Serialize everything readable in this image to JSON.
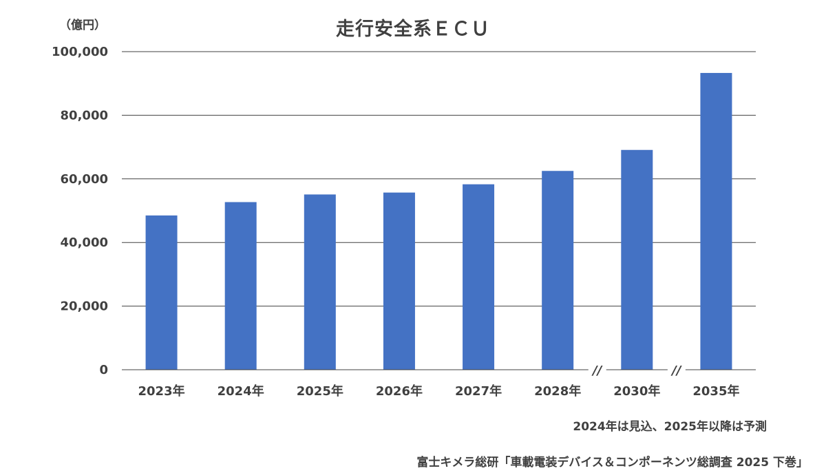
{
  "chart_data": {
    "type": "bar",
    "title": "走行安全系ＥＣＵ",
    "ylabel": "（億円）",
    "xlabel": "",
    "categories": [
      "2023年",
      "2024年",
      "2025年",
      "2026年",
      "2027年",
      "2028年",
      "2030年",
      "2035年"
    ],
    "values": [
      48500,
      52700,
      55100,
      55700,
      58300,
      62500,
      69100,
      93300
    ],
    "ylim": [
      0,
      100000
    ],
    "yticks": [
      0,
      20000,
      40000,
      60000,
      80000,
      100000
    ],
    "ytick_labels": [
      "0",
      "20,000",
      "40,000",
      "60,000",
      "80,000",
      "100,000"
    ],
    "axis_break_after": [
      "2028年",
      "2030年"
    ],
    "axis_break_symbol": "//",
    "bar_color": "#4472C4",
    "grid": true,
    "legend": "none"
  },
  "note": "2024年は見込、2025年以降は予測",
  "source": "富士キメラ総研「車載電装デバイス＆コンポーネンツ総調査 2025 下巻」"
}
